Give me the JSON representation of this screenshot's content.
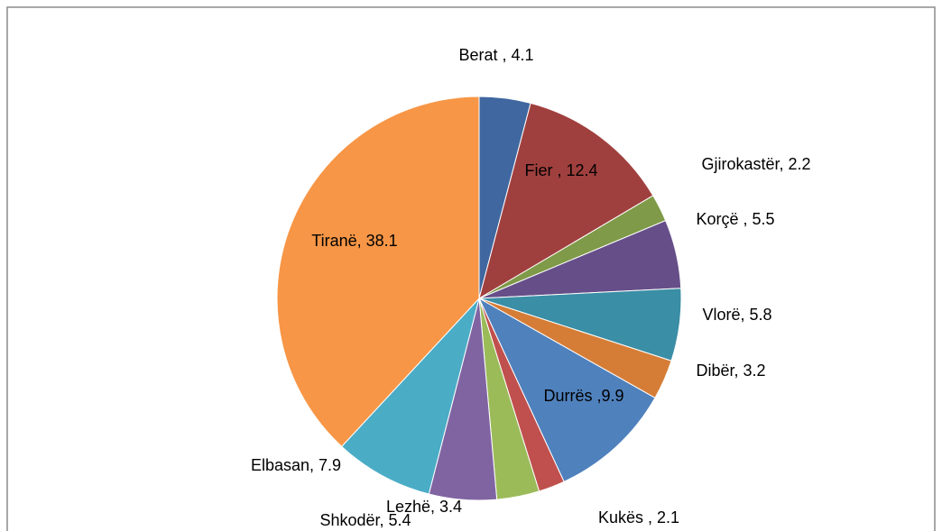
{
  "chart_data": {
    "type": "pie",
    "labels": [
      "Berat , 4.1",
      "Fier , 12.4",
      "Gjirokastër, 2.2",
      "Korçë , 5.5",
      "Vlorë, 5.8",
      "Dibër, 3.2",
      "Durrës ,9.9",
      "Kukës , 2.1",
      "Lezhë, 3.4",
      "Shkodër, 5.4",
      "Elbasan, 7.9",
      "Tiranë, 38.1"
    ],
    "values": [
      4.1,
      12.4,
      2.2,
      5.5,
      5.8,
      3.2,
      9.9,
      2.1,
      3.4,
      5.4,
      7.9,
      38.1
    ],
    "colors": [
      "#4067a0",
      "#a0403e",
      "#7f9a48",
      "#664f89",
      "#3a8ea5",
      "#d57d36",
      "#4f81bd",
      "#c0504d",
      "#9bbb59",
      "#8064a2",
      "#4bacc6",
      "#f79646"
    ]
  }
}
